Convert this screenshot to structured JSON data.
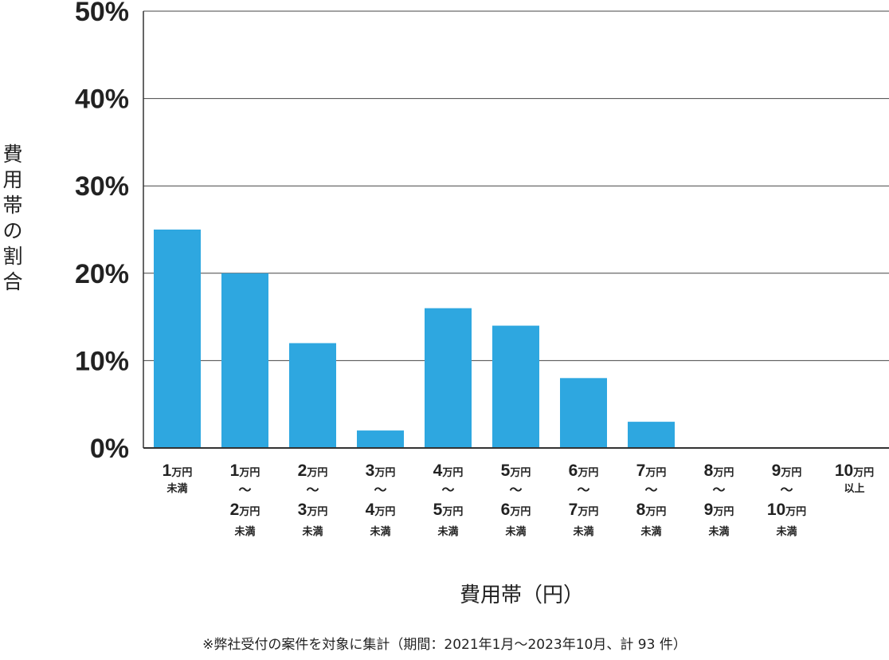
{
  "chart_data": {
    "type": "bar",
    "ylabel": "費用帯の割合",
    "xlabel": "費用帯（円）",
    "ylim": [
      0,
      50
    ],
    "yticks": [
      "0%",
      "10%",
      "20%",
      "30%",
      "40%",
      "50%"
    ],
    "grid": true,
    "bar_color": "#2EA7E0",
    "categories": [
      {
        "lines": [
          [
            "1",
            "万円"
          ],
          [
            "",
            "未満"
          ]
        ]
      },
      {
        "lines": [
          [
            "1",
            "万円"
          ],
          [
            "",
            "〜"
          ],
          [
            "2",
            "万円"
          ],
          [
            "",
            "未満"
          ]
        ]
      },
      {
        "lines": [
          [
            "2",
            "万円"
          ],
          [
            "",
            "〜"
          ],
          [
            "3",
            "万円"
          ],
          [
            "",
            "未満"
          ]
        ]
      },
      {
        "lines": [
          [
            "3",
            "万円"
          ],
          [
            "",
            "〜"
          ],
          [
            "4",
            "万円"
          ],
          [
            "",
            "未満"
          ]
        ]
      },
      {
        "lines": [
          [
            "4",
            "万円"
          ],
          [
            "",
            "〜"
          ],
          [
            "5",
            "万円"
          ],
          [
            "",
            "未満"
          ]
        ]
      },
      {
        "lines": [
          [
            "5",
            "万円"
          ],
          [
            "",
            "〜"
          ],
          [
            "6",
            "万円"
          ],
          [
            "",
            "未満"
          ]
        ]
      },
      {
        "lines": [
          [
            "6",
            "万円"
          ],
          [
            "",
            "〜"
          ],
          [
            "7",
            "万円"
          ],
          [
            "",
            "未満"
          ]
        ]
      },
      {
        "lines": [
          [
            "7",
            "万円"
          ],
          [
            "",
            "〜"
          ],
          [
            "8",
            "万円"
          ],
          [
            "",
            "未満"
          ]
        ]
      },
      {
        "lines": [
          [
            "8",
            "万円"
          ],
          [
            "",
            "〜"
          ],
          [
            "9",
            "万円"
          ],
          [
            "",
            "未満"
          ]
        ]
      },
      {
        "lines": [
          [
            "9",
            "万円"
          ],
          [
            "",
            "〜"
          ],
          [
            "10",
            "万円"
          ],
          [
            "",
            "未満"
          ]
        ]
      },
      {
        "lines": [
          [
            "10",
            "万円"
          ],
          [
            "",
            "以上"
          ]
        ]
      }
    ],
    "values": [
      25,
      20,
      12,
      2,
      16,
      14,
      8,
      3,
      0,
      0,
      0
    ]
  },
  "footnote": "※弊社受付の案件を対象に集計（期間：2021年1月～2023年10月、計 93 件）"
}
